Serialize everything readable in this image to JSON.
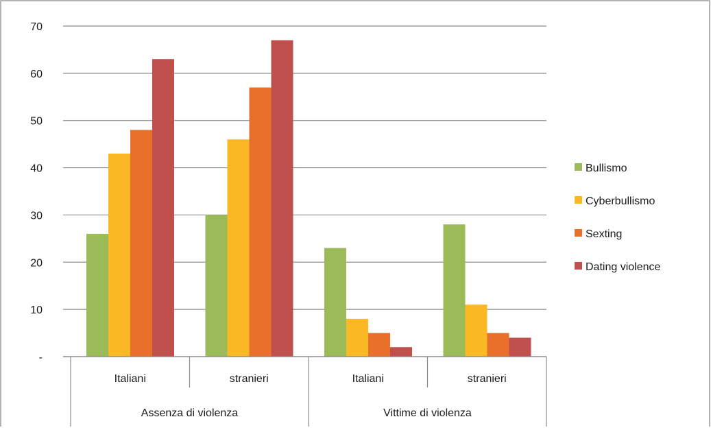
{
  "chart_data": {
    "type": "bar",
    "title": "",
    "xlabel": "",
    "ylabel": "",
    "ylim": [
      0,
      70
    ],
    "y_ticks": [
      0,
      10,
      20,
      30,
      40,
      50,
      60,
      70
    ],
    "y_tick_labels": [
      "-",
      "10",
      "20",
      "30",
      "40",
      "50",
      "60",
      "70"
    ],
    "grid": true,
    "legend_position": "right",
    "categories": [
      "Italiani",
      "stranieri",
      "Italiani",
      "stranieri"
    ],
    "groups": [
      {
        "label": "Assenza di violenza",
        "span": [
          0,
          1
        ]
      },
      {
        "label": "Vittime di violenza",
        "span": [
          2,
          3
        ]
      }
    ],
    "series": [
      {
        "name": "Bullismo",
        "color": "#9bbb59",
        "values": [
          26,
          30,
          23,
          28
        ]
      },
      {
        "name": "Cyberbullismo",
        "color": "#f9b824",
        "values": [
          43,
          46,
          8,
          11
        ]
      },
      {
        "name": "Sexting",
        "color": "#e8702a",
        "values": [
          48,
          57,
          5,
          5
        ]
      },
      {
        "name": "Dating violence",
        "color": "#c0504d",
        "values": [
          63,
          67,
          2,
          4
        ]
      }
    ]
  }
}
